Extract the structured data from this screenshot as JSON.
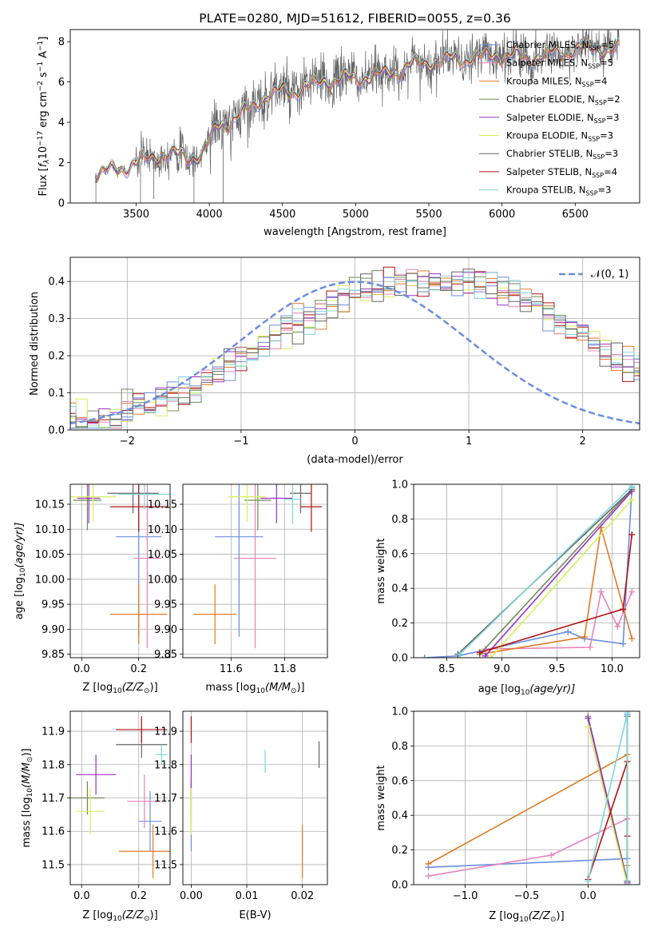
{
  "colors": {
    "cornflower": "#6a8ee0",
    "orange": "#e07b25",
    "pink": "#e683b8",
    "green": "#6d8b57",
    "purple": "#9b31c2",
    "yellow": "#d9ef5e",
    "gray": "#666666",
    "red": "#b01010",
    "cyan": "#7fd7d9",
    "grid": "#b0b0b0"
  },
  "chart_data": [
    {
      "id": "spectrum",
      "type": "line",
      "title": "PLATE=0280, MJD=51612, FIBERID=0055, z=0.36",
      "xlabel": "wavelength [Angstrom, rest frame]",
      "ylabel_main": "Flux [",
      "ylabel_flam": "f",
      "ylabel_sub": "λ",
      "ylabel_mid": "10",
      "ylabel_exp": "−17",
      "ylabel_rest": " erg cm",
      "ylabel_e2": "−2",
      "ylabel_s": " s",
      "ylabel_e3": "−1",
      "ylabel_A": " A",
      "ylabel_e4": "−1",
      "ylabel_end": "]",
      "xlim": [
        3050,
        6940
      ],
      "ylim": [
        0,
        8.6
      ],
      "xticks": [
        "3500",
        "4000",
        "4500",
        "5000",
        "5500",
        "6000",
        "6500"
      ],
      "xtick_values": [
        3500,
        4000,
        4500,
        5000,
        5500,
        6000,
        6500
      ],
      "yticks": [
        "0",
        "2",
        "4",
        "6",
        "8"
      ],
      "ytick_values": [
        0,
        2,
        4,
        6,
        8
      ],
      "grid": false,
      "legend_position": "right",
      "data_series_color": "gray",
      "continuum_anchors": {
        "x": [
          3220,
          3350,
          3500,
          3700,
          3850,
          3950,
          4050,
          4200,
          4400,
          4600,
          4800,
          5000,
          5200,
          5400,
          5600,
          5800,
          6000,
          6200,
          6400,
          6600,
          6800
        ],
        "y": [
          1.45,
          1.65,
          2.0,
          2.5,
          2.3,
          2.4,
          3.8,
          4.3,
          5.4,
          5.6,
          6.1,
          6.2,
          6.4,
          6.9,
          7.1,
          7.2,
          7.4,
          7.2,
          7.5,
          7.7,
          7.6
        ]
      },
      "legend": [
        {
          "prefix": "Chabrier MILES, N",
          "sub": "SSP",
          "suffix": "=5",
          "color": "cornflower"
        },
        {
          "prefix": "Salpeter MILES, N",
          "sub": "SSP",
          "suffix": "=5",
          "color": "pink"
        },
        {
          "prefix": "Kroupa MILES, N",
          "sub": "SSP",
          "suffix": "=4",
          "color": "orange"
        },
        {
          "prefix": "Chabrier ELODIE, N",
          "sub": "SSP",
          "suffix": "=2",
          "color": "green"
        },
        {
          "prefix": "Salpeter ELODIE, N",
          "sub": "SSP",
          "suffix": "=3",
          "color": "purple"
        },
        {
          "prefix": "Kroupa ELODIE, N",
          "sub": "SSP",
          "suffix": "=3",
          "color": "yellow"
        },
        {
          "prefix": "Chabrier STELIB, N",
          "sub": "SSP",
          "suffix": "=3",
          "color": "gray"
        },
        {
          "prefix": "Salpeter STELIB, N",
          "sub": "SSP",
          "suffix": "=4",
          "color": "red"
        },
        {
          "prefix": "Kroupa STELIB, N",
          "sub": "SSP",
          "suffix": "=3",
          "color": "cyan"
        }
      ]
    },
    {
      "id": "residuals",
      "type": "line",
      "xlabel": "(data-model)/error",
      "ylabel": "Normed distribution",
      "xlim": [
        -2.5,
        2.5
      ],
      "ylim": [
        0,
        0.465
      ],
      "xticks": [
        "−2",
        "−1",
        "0",
        "1",
        "2"
      ],
      "xtick_values": [
        -2,
        -1,
        0,
        1,
        2
      ],
      "yticks": [
        "0.0",
        "0.1",
        "0.2",
        "0.3",
        "0.4"
      ],
      "ytick_values": [
        0,
        0.1,
        0.2,
        0.3,
        0.4
      ],
      "grid": true,
      "legend_position": "top-right",
      "legend_label": "𝒩(0, 1)",
      "bin_width": 0.1,
      "histogram_base": [
        0.02,
        0.02,
        0.025,
        0.03,
        0.035,
        0.045,
        0.055,
        0.065,
        0.075,
        0.09,
        0.105,
        0.12,
        0.14,
        0.16,
        0.175,
        0.19,
        0.205,
        0.22,
        0.245,
        0.27,
        0.29,
        0.31,
        0.33,
        0.35,
        0.36,
        0.37,
        0.38,
        0.385,
        0.39,
        0.395,
        0.4,
        0.4,
        0.405,
        0.405,
        0.4,
        0.395,
        0.39,
        0.38,
        0.37,
        0.36,
        0.345,
        0.33,
        0.31,
        0.29,
        0.27,
        0.25,
        0.23,
        0.21,
        0.19,
        0.17,
        0.155,
        0.14,
        0.125,
        0.11,
        0.095,
        0.085,
        0.075,
        0.065,
        0.055,
        0.05,
        0.045,
        0.04,
        0.035,
        0.03,
        0.028,
        0.025,
        0.022,
        0.02,
        0.02,
        0.018,
        0.015
      ],
      "histogram_start": -2.55,
      "series_colors": [
        "green",
        "orange",
        "purple",
        "red",
        "yellow",
        "pink",
        "cornflower",
        "cyan",
        "gray"
      ]
    },
    {
      "id": "age-vs-Z",
      "type": "scatter",
      "xlabel": "Z [log",
      "xlabel_sub": "10",
      "xlabel_rest": "(Z/Z",
      "xlabel_sun": "⊙",
      "xlabel_end": ")]",
      "ylabel": "age  [log",
      "ylabel_sub": "10",
      "ylabel_rest": "(age/yr)]",
      "xlim": [
        -0.04,
        0.31
      ],
      "ylim": [
        9.843,
        10.19
      ],
      "xticks": [
        "0.0",
        "0.2"
      ],
      "xtick_values": [
        0,
        0.2
      ],
      "yticks": [
        "9.85",
        "9.90",
        "9.95",
        "10.00",
        "10.05",
        "10.10",
        "10.15"
      ],
      "ytick_values": [
        9.85,
        9.9,
        9.95,
        10.0,
        10.05,
        10.1,
        10.15
      ],
      "grid": true,
      "points": [
        {
          "x": 0.2,
          "xerr": 0.08,
          "y": 10.085,
          "yerr": 0.2,
          "color": "cornflower"
        },
        {
          "x": 0.23,
          "xerr": 0.05,
          "y": 10.042,
          "yerr": 0.18,
          "color": "pink"
        },
        {
          "x": 0.2,
          "xerr": 0.1,
          "y": 9.93,
          "yerr": 0.06,
          "color": "orange"
        },
        {
          "x": 0.02,
          "xerr": 0.05,
          "y": 10.158,
          "yerr": 0.06,
          "color": "green"
        },
        {
          "x": 0.025,
          "xerr": 0.04,
          "y": 10.162,
          "yerr": 0.05,
          "color": "purple"
        },
        {
          "x": 0.04,
          "xerr": 0.08,
          "y": 10.165,
          "yerr": 0.05,
          "color": "yellow"
        },
        {
          "x": 0.18,
          "xerr": 0.09,
          "y": 10.172,
          "yerr": 0.04,
          "color": "gray"
        },
        {
          "x": 0.2,
          "xerr": 0.1,
          "y": 10.145,
          "yerr": 0.05,
          "color": "red"
        },
        {
          "x": 0.22,
          "xerr": 0.09,
          "y": 10.17,
          "yerr": 0.03,
          "color": "cyan"
        }
      ]
    },
    {
      "id": "age-vs-mass",
      "type": "scatter",
      "xlabel": "mass [log",
      "xlabel_sub": "10",
      "xlabel_rest": "(M/M",
      "xlabel_sun": "⊙",
      "xlabel_end": ")]",
      "xlim": [
        11.42,
        11.96
      ],
      "ylim": [
        9.843,
        10.19
      ],
      "xticks": [
        "11.6",
        "11.8"
      ],
      "xtick_values": [
        11.6,
        11.8
      ],
      "yticks": [
        "9.85",
        "9.90",
        "9.95",
        "10.00",
        "10.05",
        "10.10",
        "10.15"
      ],
      "ytick_values": [
        9.85,
        9.9,
        9.95,
        10.0,
        10.05,
        10.1,
        10.15
      ],
      "grid": true,
      "points": [
        {
          "x": 11.63,
          "xerr": 0.09,
          "y": 10.085,
          "yerr": 0.2,
          "color": "cornflower"
        },
        {
          "x": 11.69,
          "xerr": 0.08,
          "y": 10.042,
          "yerr": 0.18,
          "color": "pink"
        },
        {
          "x": 11.54,
          "xerr": 0.08,
          "y": 9.93,
          "yerr": 0.06,
          "color": "orange"
        },
        {
          "x": 11.7,
          "xerr": 0.05,
          "y": 10.158,
          "yerr": 0.06,
          "color": "green"
        },
        {
          "x": 11.77,
          "xerr": 0.06,
          "y": 10.162,
          "yerr": 0.05,
          "color": "purple"
        },
        {
          "x": 11.66,
          "xerr": 0.07,
          "y": 10.165,
          "yerr": 0.05,
          "color": "yellow"
        },
        {
          "x": 11.86,
          "xerr": 0.04,
          "y": 10.172,
          "yerr": 0.04,
          "color": "gray"
        },
        {
          "x": 11.9,
          "xerr": 0.04,
          "y": 10.145,
          "yerr": 0.05,
          "color": "red"
        },
        {
          "x": 11.83,
          "xerr": 0.03,
          "y": 10.16,
          "yerr": 0.05,
          "color": "cyan"
        }
      ]
    },
    {
      "id": "weight-vs-age",
      "type": "line",
      "xlabel": "age  [log",
      "xlabel_sub": "10",
      "xlabel_rest": "(age/yr)]",
      "ylabel": "mass weight",
      "xlim": [
        8.2,
        10.25
      ],
      "ylim": [
        0,
        1
      ],
      "xticks": [
        "8.5",
        "9.0",
        "9.5",
        "10.0"
      ],
      "xtick_values": [
        8.5,
        9.0,
        9.5,
        10.0
      ],
      "yticks": [
        "0.0",
        "0.2",
        "0.4",
        "0.6",
        "0.8",
        "1.0"
      ],
      "ytick_values": [
        0,
        0.2,
        0.4,
        0.6,
        0.8,
        1.0
      ],
      "grid": true,
      "series": [
        {
          "color": "cornflower",
          "x": [
            8.3,
            8.6,
            9.6,
            9.75,
            10.1,
            10.18
          ],
          "y": [
            0.0,
            0.01,
            0.15,
            0.11,
            0.08,
            0.98
          ]
        },
        {
          "color": "pink",
          "x": [
            8.85,
            9.8,
            9.9,
            10.05,
            10.18
          ],
          "y": [
            0.05,
            0.06,
            0.38,
            0.18,
            0.38
          ]
        },
        {
          "color": "orange",
          "x": [
            8.8,
            9.75,
            9.9,
            10.18
          ],
          "y": [
            0.02,
            0.12,
            0.75,
            0.11
          ]
        },
        {
          "color": "green",
          "x": [
            8.8,
            10.18
          ],
          "y": [
            0.02,
            0.97
          ]
        },
        {
          "color": "purple",
          "x": [
            8.85,
            10.18
          ],
          "y": [
            0.01,
            0.96
          ]
        },
        {
          "color": "yellow",
          "x": [
            8.9,
            10.18
          ],
          "y": [
            0.0,
            0.91
          ]
        },
        {
          "color": "gray",
          "x": [
            8.6,
            10.18
          ],
          "y": [
            0.02,
            0.97
          ]
        },
        {
          "color": "red",
          "x": [
            8.8,
            10.1,
            10.18
          ],
          "y": [
            0.03,
            0.28,
            0.71
          ]
        },
        {
          "color": "cyan",
          "x": [
            8.62,
            10.18
          ],
          "y": [
            0.02,
            0.99
          ]
        }
      ]
    },
    {
      "id": "mass-vs-Z",
      "type": "scatter",
      "xlabel": "Z [log",
      "xlabel_sub": "10",
      "xlabel_rest": "(Z/Z",
      "xlabel_sun": "⊙",
      "xlabel_end": ")]",
      "ylabel": "mass [log",
      "ylabel_sub": "10",
      "ylabel_rest": "(M/M",
      "ylabel_sun": "⊙",
      "ylabel_end": ")]",
      "xlim": [
        -0.04,
        0.31
      ],
      "ylim": [
        11.44,
        11.96
      ],
      "xticks": [
        "0.0",
        "0.2"
      ],
      "xtick_values": [
        0,
        0.2
      ],
      "yticks": [
        "11.5",
        "11.6",
        "11.7",
        "11.8",
        "11.9"
      ],
      "ytick_values": [
        11.5,
        11.6,
        11.7,
        11.8,
        11.9
      ],
      "grid": true,
      "points": [
        {
          "x": 0.24,
          "xerr": 0.04,
          "y": 11.63,
          "yerr": 0.09,
          "color": "cornflower"
        },
        {
          "x": 0.22,
          "xerr": 0.06,
          "y": 11.69,
          "yerr": 0.08,
          "color": "pink"
        },
        {
          "x": 0.25,
          "xerr": 0.12,
          "y": 11.54,
          "yerr": 0.08,
          "color": "orange"
        },
        {
          "x": 0.02,
          "xerr": 0.06,
          "y": 11.7,
          "yerr": 0.05,
          "color": "green"
        },
        {
          "x": 0.05,
          "xerr": 0.07,
          "y": 11.77,
          "yerr": 0.06,
          "color": "purple"
        },
        {
          "x": 0.03,
          "xerr": 0.05,
          "y": 11.66,
          "yerr": 0.07,
          "color": "yellow"
        },
        {
          "x": 0.21,
          "xerr": 0.09,
          "y": 11.86,
          "yerr": 0.04,
          "color": "gray"
        },
        {
          "x": 0.21,
          "xerr": 0.09,
          "y": 11.905,
          "yerr": 0.04,
          "color": "red"
        },
        {
          "x": 0.28,
          "xerr": 0.02,
          "y": 11.83,
          "yerr": 0.03,
          "color": "cyan"
        }
      ]
    },
    {
      "id": "mass-vs-EBV",
      "type": "scatter",
      "xlabel": "E(B-V)",
      "xlim": [
        -0.0015,
        0.0245
      ],
      "ylim": [
        11.44,
        11.96
      ],
      "xticks": [
        "0.00",
        "0.01",
        "0.02"
      ],
      "xtick_values": [
        0,
        0.01,
        0.02
      ],
      "yticks": [
        "11.5",
        "11.6",
        "11.7",
        "11.8",
        "11.9"
      ],
      "ytick_values": [
        11.5,
        11.6,
        11.7,
        11.8,
        11.9
      ],
      "grid": true,
      "points": [
        {
          "x": 0.0,
          "y": 11.63,
          "yerr": 0.09,
          "color": "cornflower"
        },
        {
          "x": 0.0,
          "y": 11.69,
          "yerr": 0.08,
          "color": "pink"
        },
        {
          "x": 0.02,
          "y": 11.54,
          "yerr": 0.08,
          "color": "orange"
        },
        {
          "x": 0.0,
          "y": 11.7,
          "yerr": 0.05,
          "color": "green"
        },
        {
          "x": 0.0,
          "y": 11.77,
          "yerr": 0.06,
          "color": "purple"
        },
        {
          "x": 0.0,
          "y": 11.66,
          "yerr": 0.07,
          "color": "yellow"
        },
        {
          "x": 0.023,
          "y": 11.83,
          "yerr": 0.04,
          "color": "gray"
        },
        {
          "x": 0.0,
          "y": 11.905,
          "yerr": 0.04,
          "color": "red"
        },
        {
          "x": 0.0133,
          "y": 11.81,
          "yerr": 0.035,
          "color": "cyan"
        }
      ]
    },
    {
      "id": "weight-vs-Z",
      "type": "line",
      "xlabel": "Z [log",
      "xlabel_sub": "10",
      "xlabel_rest": "(Z/Z",
      "xlabel_sun": "⊙",
      "xlabel_end": ")]",
      "ylabel": "mass weight",
      "xlim": [
        -1.42,
        0.42
      ],
      "ylim": [
        0,
        1
      ],
      "xticks": [
        "−1.0",
        "−0.5",
        "0.0"
      ],
      "xtick_values": [
        -1.0,
        -0.5,
        0.0
      ],
      "yticks": [
        "0.0",
        "0.2",
        "0.4",
        "0.6",
        "0.8",
        "1.0"
      ],
      "ytick_values": [
        0,
        0.2,
        0.4,
        0.6,
        0.8,
        1.0
      ],
      "grid": true,
      "series": [
        {
          "color": "cornflower",
          "x": [
            -1.3,
            0.32,
            0.32,
            0.32
          ],
          "y": [
            0.1,
            0.15,
            0.0,
            0.98
          ]
        },
        {
          "color": "pink",
          "x": [
            -1.3,
            -0.3,
            0.32,
            0.32
          ],
          "y": [
            0.05,
            0.17,
            0.38,
            0.0
          ]
        },
        {
          "color": "orange",
          "x": [
            -1.3,
            0.32,
            0.32
          ],
          "y": [
            0.12,
            0.75,
            0.11
          ]
        },
        {
          "color": "green",
          "x": [
            0.0,
            0.32
          ],
          "y": [
            0.97,
            0.02
          ]
        },
        {
          "color": "purple",
          "x": [
            0.0,
            0.32
          ],
          "y": [
            0.96,
            0.01
          ]
        },
        {
          "color": "yellow",
          "x": [
            0.0,
            0.32
          ],
          "y": [
            0.91,
            0.0
          ]
        },
        {
          "color": "gray",
          "x": [
            0.32,
            0.32
          ],
          "y": [
            0.02,
            0.97
          ]
        },
        {
          "color": "red",
          "x": [
            0.0,
            0.32,
            0.32
          ],
          "y": [
            0.03,
            0.71,
            0.28
          ]
        },
        {
          "color": "cyan",
          "x": [
            0.0,
            0.32,
            0.32
          ],
          "y": [
            0.02,
            0.99,
            0.0
          ]
        }
      ]
    }
  ]
}
